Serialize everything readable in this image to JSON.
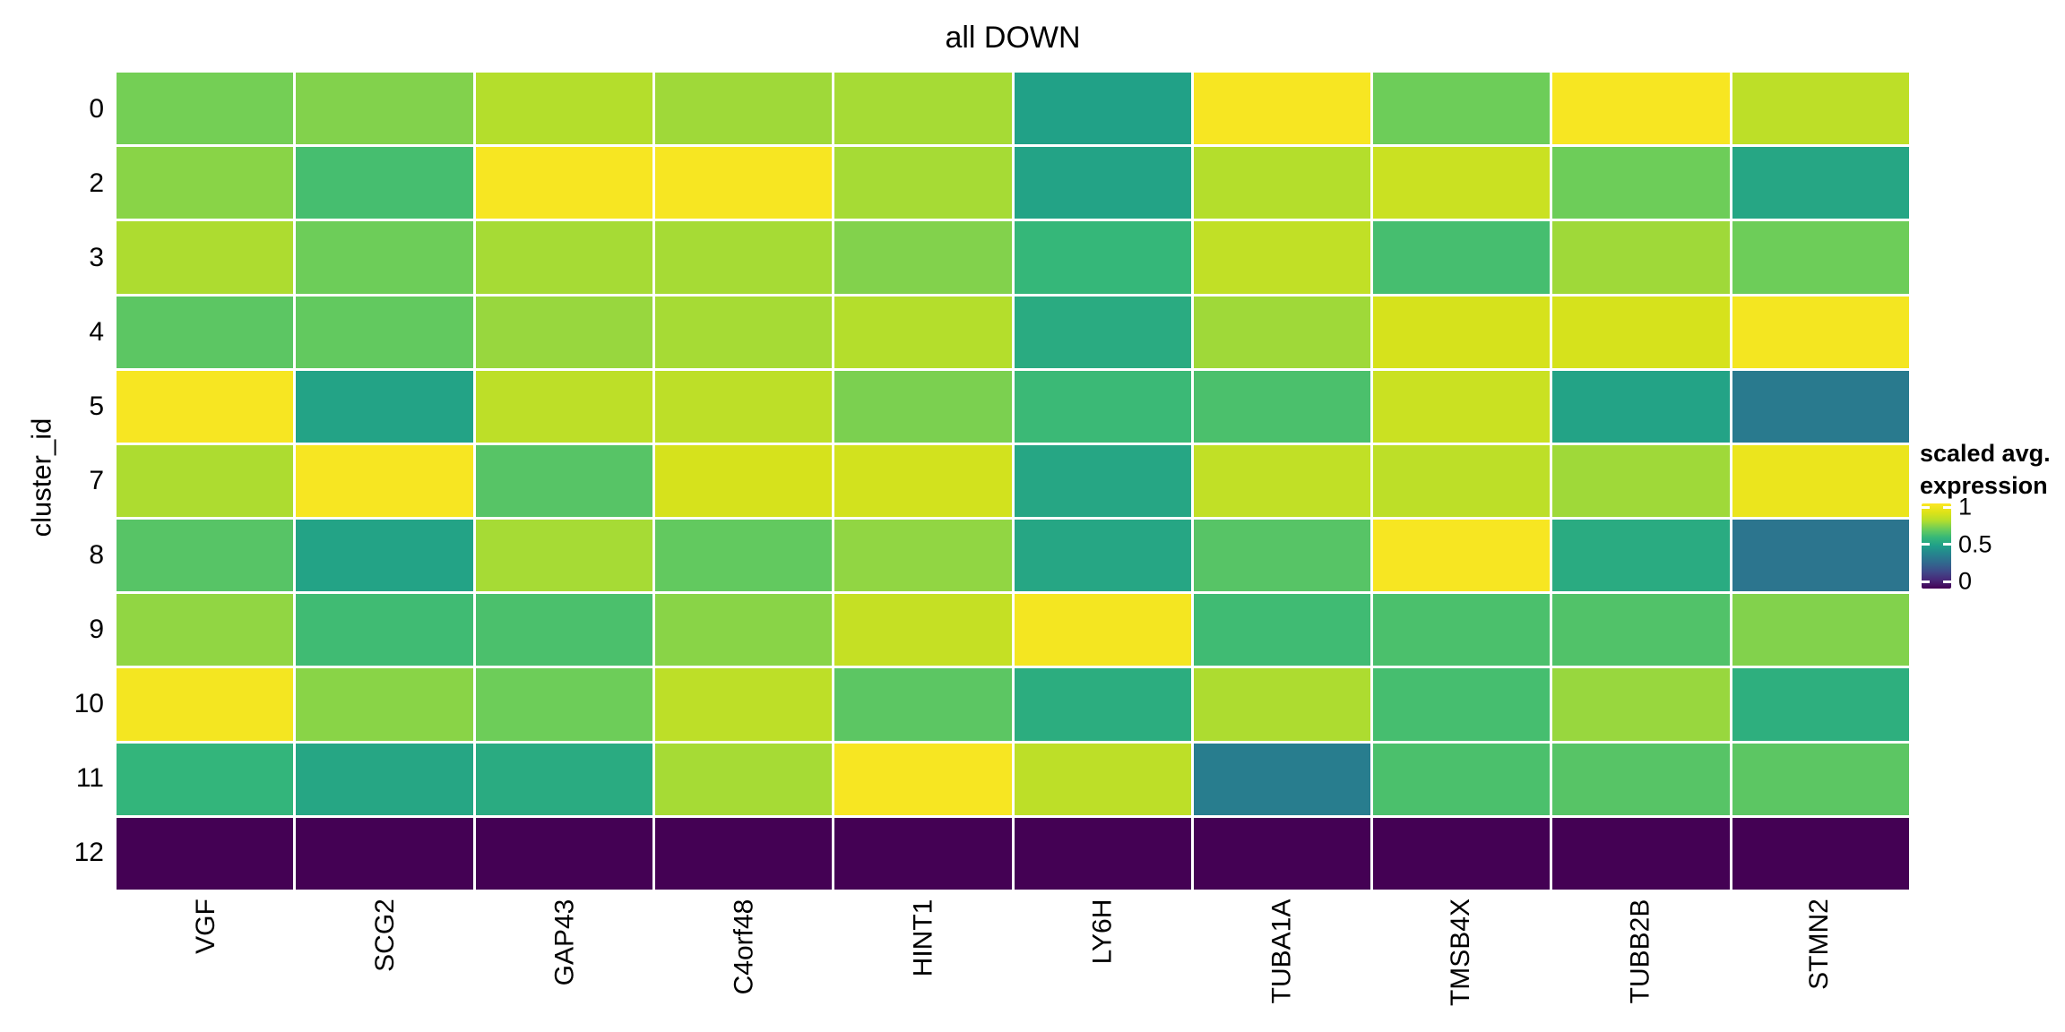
{
  "title": "all DOWN",
  "y_axis": {
    "label": "cluster_id",
    "tick_labels": [
      "0",
      "2",
      "3",
      "4",
      "5",
      "7",
      "8",
      "9",
      "10",
      "11",
      "12"
    ]
  },
  "x_axis": {
    "tick_labels": [
      "VGF",
      "SCG2",
      "GAP43",
      "C4orf48",
      "HINT1",
      "LY6H",
      "TUBA1A",
      "TMSB4X",
      "TUBB2B",
      "STMN2"
    ]
  },
  "legend": {
    "title_lines": [
      "scaled avg.",
      "expression"
    ],
    "tick_labels": [
      "1",
      "0.5",
      "0"
    ],
    "colormap": "viridis",
    "top_color": "#FDE725",
    "mid_color": "#1F9E89",
    "bottom_color": "#440154"
  },
  "chart_data": {
    "type": "heatmap",
    "title": "all DOWN",
    "ylabel": "cluster_id",
    "xlabel": "",
    "colormap": "viridis",
    "color_scale": {
      "min": 0,
      "max": 1,
      "legend_title": "scaled avg. expression",
      "legend_ticks": [
        1,
        0.5,
        0
      ]
    },
    "x_categories": [
      "VGF",
      "SCG2",
      "GAP43",
      "C4orf48",
      "HINT1",
      "LY6H",
      "TUBA1A",
      "TMSB4X",
      "TUBB2B",
      "STMN2"
    ],
    "y_categories": [
      "0",
      "2",
      "3",
      "4",
      "5",
      "7",
      "8",
      "9",
      "10",
      "11",
      "12"
    ],
    "values": [
      [
        0.71,
        0.73,
        0.8,
        0.77,
        0.78,
        0.51,
        0.98,
        0.7,
        0.98,
        0.82
      ],
      [
        0.74,
        0.63,
        0.98,
        0.98,
        0.78,
        0.52,
        0.8,
        0.85,
        0.7,
        0.53
      ],
      [
        0.79,
        0.7,
        0.78,
        0.78,
        0.73,
        0.6,
        0.83,
        0.63,
        0.77,
        0.7
      ],
      [
        0.67,
        0.68,
        0.76,
        0.78,
        0.8,
        0.55,
        0.77,
        0.88,
        0.88,
        0.97
      ],
      [
        0.98,
        0.52,
        0.82,
        0.82,
        0.72,
        0.61,
        0.64,
        0.85,
        0.52,
        0.37
      ],
      [
        0.79,
        0.98,
        0.66,
        0.88,
        0.87,
        0.53,
        0.83,
        0.82,
        0.77,
        0.94
      ],
      [
        0.66,
        0.52,
        0.78,
        0.68,
        0.75,
        0.53,
        0.66,
        0.98,
        0.55,
        0.35
      ],
      [
        0.75,
        0.62,
        0.64,
        0.74,
        0.84,
        0.97,
        0.62,
        0.64,
        0.65,
        0.73
      ],
      [
        0.97,
        0.74,
        0.7,
        0.82,
        0.67,
        0.56,
        0.79,
        0.63,
        0.76,
        0.57
      ],
      [
        0.59,
        0.53,
        0.55,
        0.78,
        0.98,
        0.82,
        0.38,
        0.64,
        0.66,
        0.67
      ],
      [
        0.0,
        0.0,
        0.0,
        0.0,
        0.0,
        0.0,
        0.0,
        0.0,
        0.0,
        0.0
      ]
    ]
  }
}
